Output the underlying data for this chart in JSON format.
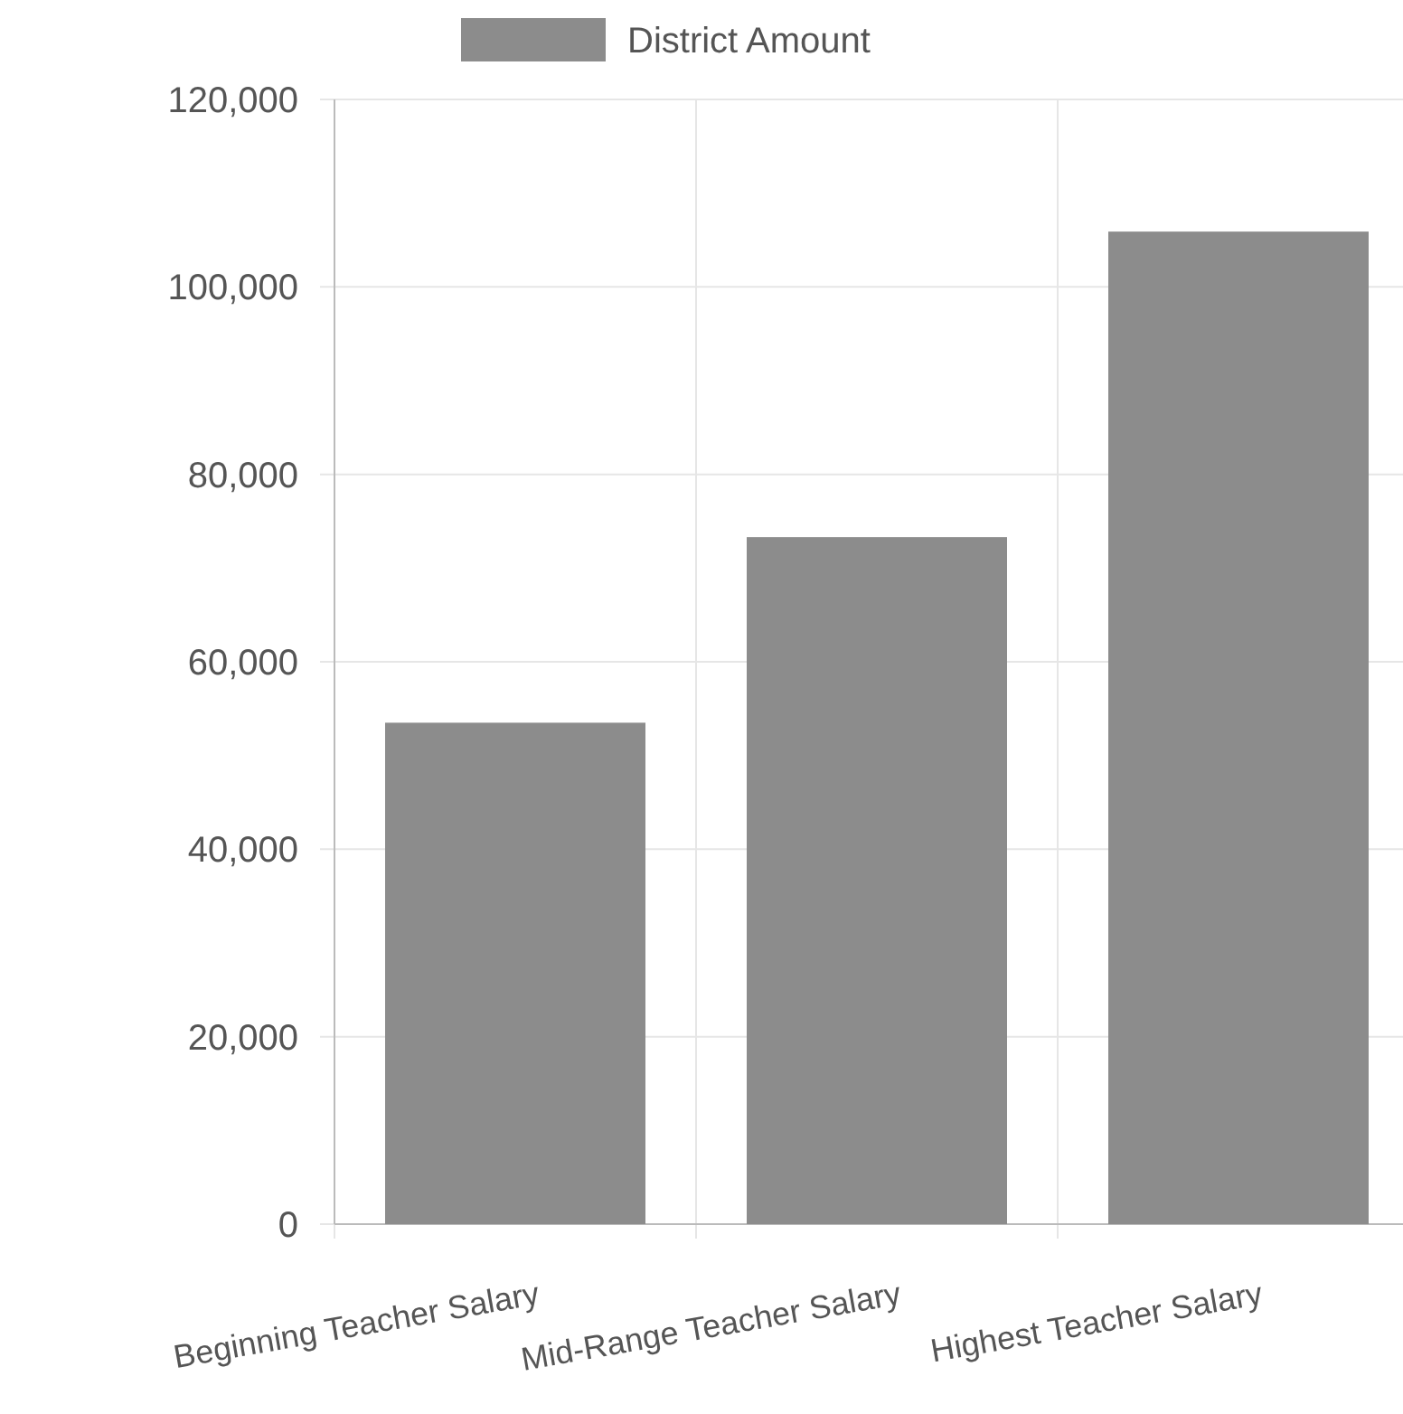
{
  "chart_data": {
    "type": "bar",
    "categories": [
      "Beginning Teacher Salary",
      "Mid-Range Teacher Salary",
      "Highest Teacher Salary"
    ],
    "series": [
      {
        "name": "District Amount",
        "color": "#8c8c8c",
        "values": [
          53500,
          73300,
          105900
        ]
      }
    ],
    "ylim": [
      0,
      120000
    ],
    "yticks": [
      {
        "value": 0,
        "label": "0"
      },
      {
        "value": 20000,
        "label": "20,000"
      },
      {
        "value": 40000,
        "label": "40,000"
      },
      {
        "value": 60000,
        "label": "60,000"
      },
      {
        "value": 80000,
        "label": "80,000"
      },
      {
        "value": 100000,
        "label": "100,000"
      },
      {
        "value": 120000,
        "label": "120,000"
      }
    ],
    "grid": true,
    "legend": "top"
  }
}
